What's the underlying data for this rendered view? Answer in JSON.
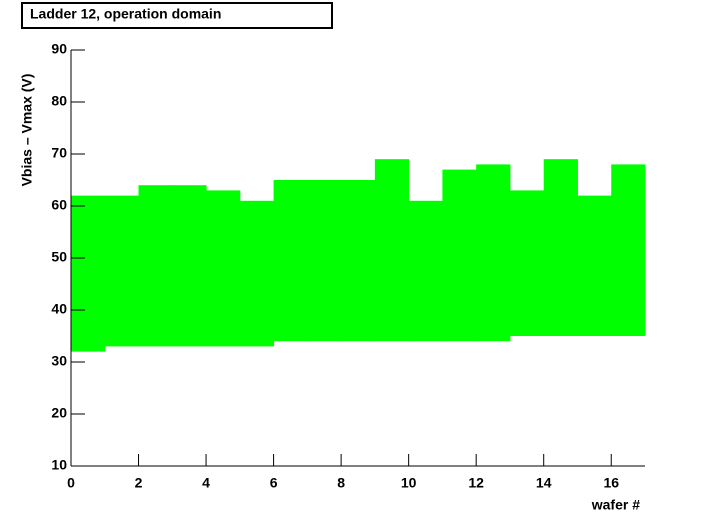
{
  "chart_data": {
    "type": "range-histogram",
    "title": "Ladder 12, operation domain",
    "x_label": "wafer #",
    "y_label": "Vbias – Vmax (V)",
    "bins": [
      0,
      1,
      2,
      3,
      4,
      5,
      6,
      7,
      8,
      9,
      10,
      11,
      12,
      13,
      14,
      15,
      16,
      17
    ],
    "lows": [
      32,
      33,
      33,
      33,
      33,
      33,
      34,
      34,
      34,
      34,
      34,
      34,
      34,
      35,
      35,
      35,
      35
    ],
    "highs": [
      62,
      62,
      64,
      64,
      63,
      61,
      65,
      65,
      65,
      69,
      61,
      67,
      68,
      63,
      69,
      62,
      68
    ],
    "color": "#00ff00",
    "xlim": [
      0,
      17
    ],
    "xticks": [
      0,
      2,
      4,
      6,
      8,
      10,
      12,
      14,
      16
    ],
    "ylim": [
      10,
      90
    ],
    "yticks": [
      10,
      20,
      30,
      40,
      50,
      60,
      70,
      80,
      90
    ]
  }
}
